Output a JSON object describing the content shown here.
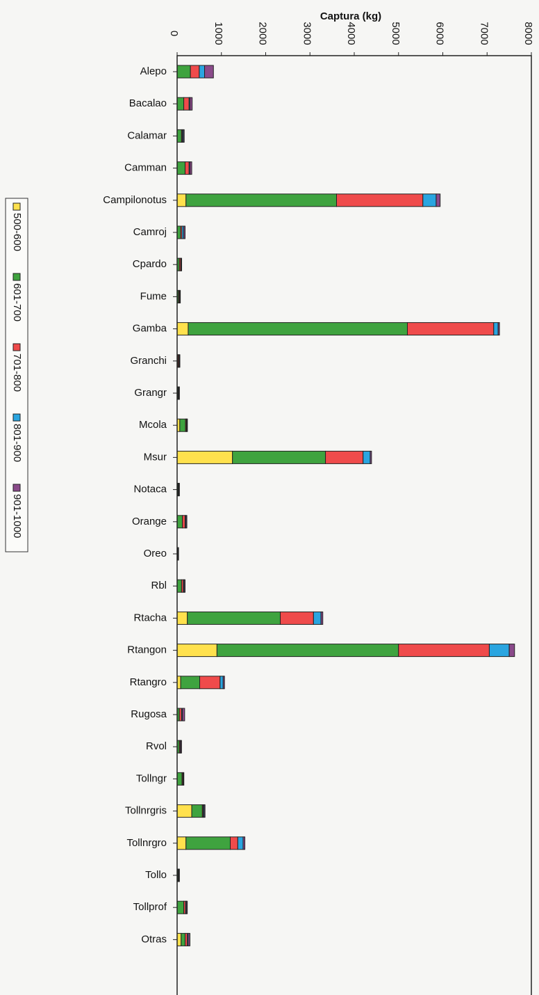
{
  "chart_data": {
    "type": "bar",
    "orientation": "horizontal",
    "stacked": true,
    "xlabel": "Captura (kg)",
    "xlim": [
      0,
      8000
    ],
    "xticks": [
      0,
      1000,
      2000,
      3000,
      4000,
      5000,
      6000,
      7000,
      8000
    ],
    "grid": false,
    "legend": "left",
    "categories": [
      "Alepo",
      "Bacalao",
      "Calamar",
      "Camman",
      "Campilonotus",
      "Camroj",
      "Cpardo",
      "Fume",
      "Gamba",
      "Granchi",
      "Grangr",
      "Mcola",
      "Msur",
      "Notaca",
      "Orange",
      "Oreo",
      "Rbl",
      "Rtacha",
      "Rtangon",
      "Rtangro",
      "Rugosa",
      "Rvol",
      "Tollngr",
      "Tollnrgris",
      "Tollnrgro",
      "Tollo",
      "Tollprof",
      "Otras"
    ],
    "series": [
      {
        "name": "500-600",
        "color": "#ffe14d",
        "values": [
          0,
          0,
          0,
          0,
          200,
          0,
          0,
          0,
          250,
          0,
          0,
          60,
          1250,
          0,
          0,
          0,
          0,
          230,
          900,
          80,
          0,
          0,
          0,
          330,
          200,
          0,
          0,
          90
        ]
      },
      {
        "name": "601-700",
        "color": "#3fa33f",
        "values": [
          300,
          150,
          100,
          180,
          3400,
          80,
          50,
          30,
          4950,
          20,
          20,
          130,
          2100,
          20,
          120,
          10,
          100,
          2100,
          4100,
          430,
          50,
          50,
          110,
          240,
          1000,
          20,
          150,
          90
        ]
      },
      {
        "name": "701-800",
        "color": "#ef4b4b",
        "values": [
          200,
          120,
          20,
          90,
          1950,
          30,
          30,
          20,
          1950,
          20,
          10,
          20,
          850,
          10,
          60,
          5,
          40,
          750,
          2050,
          460,
          50,
          20,
          20,
          20,
          170,
          10,
          40,
          50
        ]
      },
      {
        "name": "801-900",
        "color": "#2aa5e0",
        "values": [
          120,
          20,
          20,
          20,
          300,
          40,
          10,
          10,
          100,
          10,
          10,
          10,
          160,
          10,
          20,
          5,
          20,
          170,
          450,
          70,
          20,
          10,
          10,
          20,
          120,
          10,
          20,
          20
        ]
      },
      {
        "name": "901-1000",
        "color": "#8a4a8a",
        "values": [
          200,
          50,
          20,
          40,
          90,
          30,
          10,
          10,
          30,
          10,
          10,
          10,
          30,
          10,
          20,
          5,
          20,
          40,
          120,
          30,
          50,
          20,
          10,
          20,
          40,
          10,
          20,
          40
        ]
      }
    ]
  }
}
